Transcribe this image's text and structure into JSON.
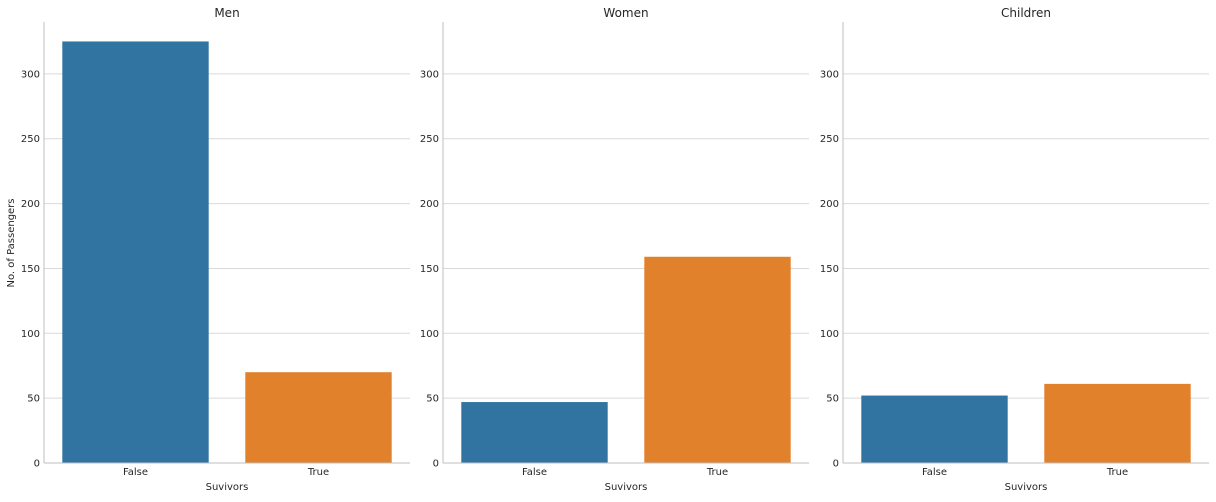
{
  "chart_data": {
    "type": "bar",
    "ylabel": "No. of Passengers",
    "ylim": [
      0,
      340
    ],
    "yticks": [
      0,
      50,
      100,
      150,
      200,
      250,
      300
    ],
    "grid": "horizontal",
    "categories": [
      "False",
      "True"
    ],
    "colors": [
      "#3274a1",
      "#e1812c"
    ],
    "panels": [
      {
        "title": "Men",
        "xlabel": "Suvivors",
        "values": [
          325,
          70
        ]
      },
      {
        "title": "Women",
        "xlabel": "Suvivors",
        "values": [
          47,
          159
        ]
      },
      {
        "title": "Children",
        "xlabel": "Suvivors",
        "values": [
          52,
          61
        ]
      }
    ]
  }
}
